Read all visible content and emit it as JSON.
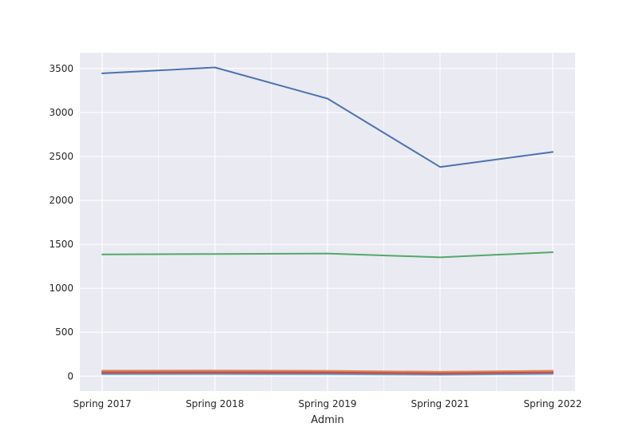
{
  "chart_data": {
    "type": "line",
    "title": "",
    "xlabel": "Admin",
    "ylabel": "",
    "categories": [
      "Spring 2017",
      "Spring 2018",
      "Spring 2019",
      "Spring 2021",
      "Spring 2022"
    ],
    "ylim": [
      -170,
      3680
    ],
    "yticks": [
      0,
      500,
      1000,
      1500,
      2000,
      2500,
      3000,
      3500
    ],
    "grid": true,
    "legend": "none",
    "background_color": "#eaeaf2",
    "series": [
      {
        "color": "#4c72b0",
        "values": [
          3445,
          3512,
          3158,
          2380,
          2550
        ]
      },
      {
        "color": "#55a868",
        "values": [
          1385,
          1390,
          1395,
          1352,
          1410
        ]
      },
      {
        "color": "#dd8452",
        "values": [
          62,
          63,
          61,
          50,
          60
        ]
      },
      {
        "color": "#c44e52",
        "values": [
          40,
          42,
          40,
          30,
          44
        ]
      },
      {
        "color": "#8172b3",
        "values": [
          35,
          36,
          35,
          25,
          38
        ]
      },
      {
        "color": "#937860",
        "values": [
          45,
          46,
          45,
          36,
          48
        ]
      },
      {
        "color": "#da8bc3",
        "values": [
          52,
          54,
          53,
          44,
          56
        ]
      },
      {
        "color": "#8c8c8c",
        "values": [
          30,
          31,
          30,
          22,
          32
        ]
      },
      {
        "color": "#ccb974",
        "values": [
          58,
          59,
          57,
          47,
          62
        ]
      },
      {
        "color": "#64b5cd",
        "values": [
          22,
          24,
          22,
          15,
          25
        ]
      }
    ]
  }
}
